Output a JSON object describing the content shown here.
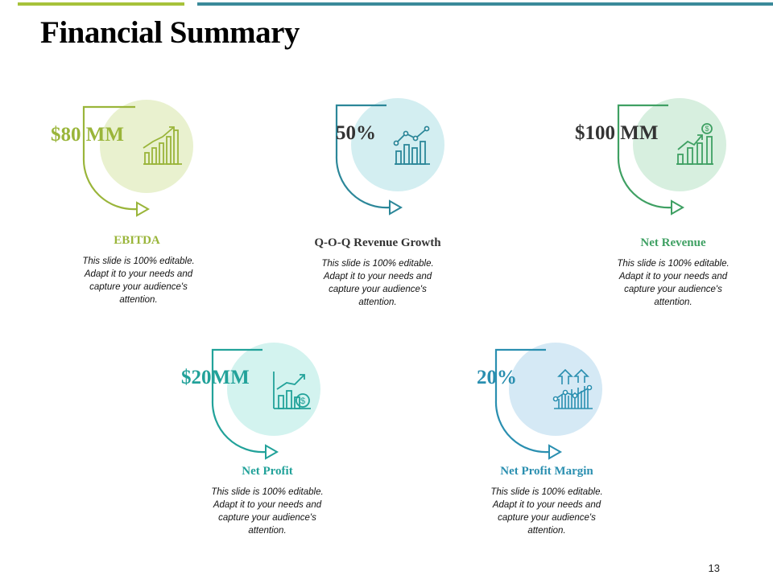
{
  "title": "Financial Summary",
  "page_number": "13",
  "colors": {
    "top_bar_left": "#a7c23a",
    "top_bar_right": "#3a8a9a"
  },
  "metrics": [
    {
      "value": "$80 MM",
      "label": "EBITDA",
      "description": "This slide is 100% editable. Adapt it to your needs and capture your audience's attention.",
      "accent": "#9ab53a",
      "circle": "#e9f1cf",
      "icon": "bar-growth-chart-icon"
    },
    {
      "value": "50%",
      "label": "Q-O-Q Revenue Growth",
      "description": "This slide is 100% editable. Adapt it to your needs and capture your audience's attention.",
      "accent": "#2c8799",
      "circle": "#d3eef1",
      "icon": "line-bar-chart-icon"
    },
    {
      "value": "$100 MM",
      "label": "Net Revenue",
      "description": "This slide is 100% editable. Adapt it to your needs and capture your audience's attention.",
      "accent": "#3fa063",
      "circle": "#d7efdf",
      "icon": "revenue-growth-icon"
    },
    {
      "value": "$20MM",
      "label": "Net Profit",
      "description": "This slide is 100% editable. Adapt it to your needs and capture your audience's attention.",
      "accent": "#22a29a",
      "circle": "#d3f3ef",
      "icon": "profit-chart-icon"
    },
    {
      "value": "20%",
      "label": "Net Profit Margin",
      "description": "This slide is 100% editable. Adapt it to your needs and capture your audience's attention.",
      "accent": "#2a8fb0",
      "circle": "#d5e9f5",
      "icon": "margin-chart-icon"
    }
  ]
}
